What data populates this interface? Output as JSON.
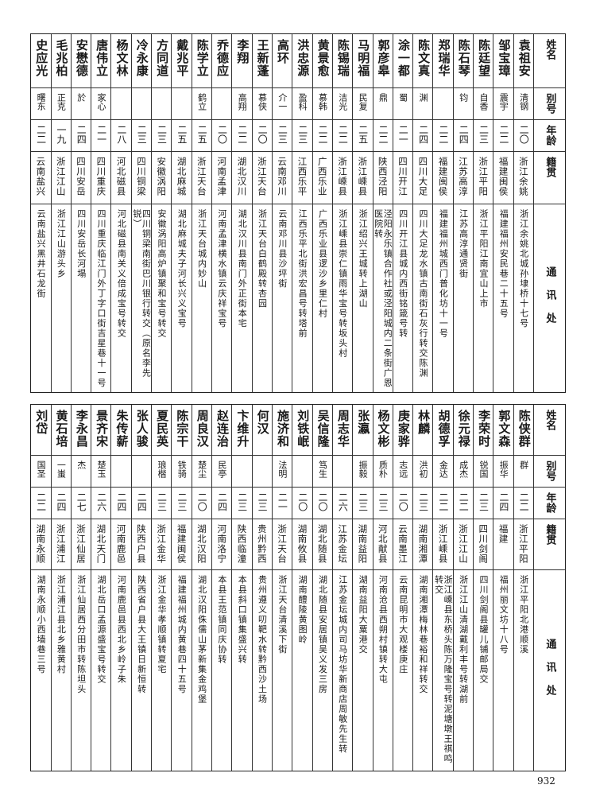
{
  "headers": {
    "name": "姓名",
    "alias": "别号",
    "age": "年龄",
    "origin": "籍贯",
    "address": "通讯处"
  },
  "top_rows": [
    {
      "name": "袁祖安",
      "alias": "清钢",
      "age": "二〇",
      "origin": "浙江余姚",
      "address": "浙江余姚北城孙埭桥十七号"
    },
    {
      "name": "邹宝璋",
      "alias": "震宇",
      "age": "二二",
      "origin": "福建闽侯",
      "address": "福建福州安民巷二十五号"
    },
    {
      "name": "陈廷望",
      "alias": "自香",
      "age": "二三",
      "origin": "浙江平阳",
      "address": "浙江平阳江南宜山上市"
    },
    {
      "name": "陈石琴",
      "alias": "钧",
      "age": "二四",
      "origin": "江苏高淳",
      "address": "江苏高淳通贤街"
    },
    {
      "name": "郑瑞华",
      "alias": "",
      "age": "二二",
      "origin": "福建闽侯",
      "address": "福建福州城西门普化坊十一号"
    },
    {
      "name": "陈文真",
      "alias": "渊",
      "age": "二四",
      "origin": "四川大足",
      "address": "四川大足龙水镇古南街石灰行转交陈渊"
    },
    {
      "name": "涂一都",
      "alias": "蜀",
      "age": "二一",
      "origin": "四川开江",
      "address": "四川开江县城内西街铭箴号转"
    },
    {
      "name": "郭彦皋",
      "alias": "鼎",
      "age": "二二",
      "origin": "陕西泾阳",
      "address": "泾阳永乐镇合作社或泾阳城内二条街广恩医院转"
    },
    {
      "name": "马明福",
      "alias": "民复",
      "age": "二五",
      "origin": "浙江嵊县",
      "address": "浙江绍兴王城转上湖山"
    },
    {
      "name": "陈锡瑞",
      "alias": "洁光",
      "age": "二二",
      "origin": "浙江嵊县",
      "address": "浙江嵊县崇仁镇雨华宝号转坂头村"
    },
    {
      "name": "黄景愈",
      "alias": "慕韩",
      "age": "二二",
      "origin": "广西乐业",
      "address": "广西乐业县逻沙乡里仁村"
    },
    {
      "name": "洪忠源",
      "alias": "盈科",
      "age": "二三",
      "origin": "江西乐平",
      "address": "江西乐平北街洪宏昌号转塔前"
    },
    {
      "name": "高环",
      "alias": "介一",
      "age": "二三",
      "origin": "云南邓川",
      "address": "云南邓川县沙坪街"
    },
    {
      "name": "王新蓬",
      "alias": "慕侠",
      "age": "二〇",
      "origin": "浙江天台",
      "address": "浙江天台白鹤殿转杏园"
    },
    {
      "name": "李翔",
      "alias": "高翔",
      "age": "二二",
      "origin": "湖北汉川",
      "address": "湖北汉川县南门外正街本宅"
    },
    {
      "name": "乔德应",
      "alias": "",
      "age": "二〇",
      "origin": "河南孟津",
      "address": "河南孟津横水镇云庆祥宝号"
    },
    {
      "name": "陈学立",
      "alias": "鹤立",
      "age": "二五",
      "origin": "浙江天台",
      "address": "浙江天台城内妙山"
    },
    {
      "name": "戴兆平",
      "alias": "",
      "age": "二五",
      "origin": "湖北麻城",
      "address": "湖北麻城夫子河长兴义宝号"
    },
    {
      "name": "方同道",
      "alias": "",
      "age": "二三",
      "origin": "安徽涡阳",
      "address": "安徽涡阳高炉镇聚和宝号转交"
    },
    {
      "name": "冷永康",
      "alias": "",
      "age": "二三",
      "origin": "四川铜梁",
      "address": "四川铜梁南街巴川银行转交（原名李先锐）"
    },
    {
      "name": "杨文林",
      "alias": "",
      "age": "二八",
      "origin": "河北磁县",
      "address": "河北磁县南关义倍成宝号转交"
    },
    {
      "name": "唐伟立",
      "alias": "家心",
      "age": "二一",
      "origin": "四川重庆",
      "address": "四川重庆临江门外丁字口街吉星巷十一号"
    },
    {
      "name": "安懋德",
      "alias": "於",
      "age": "二四",
      "origin": "四川安岳",
      "address": "四川安岳长河塌"
    },
    {
      "name": "毛兆柏",
      "alias": "正克",
      "age": "一九",
      "origin": "浙江江山",
      "address": "浙江江山游头乡"
    },
    {
      "name": "史应光",
      "alias": "曙东",
      "age": "二二",
      "origin": "云南盐兴",
      "address": "云南盐兴黑井石龙街"
    }
  ],
  "bottom_rows": [
    {
      "name": "陈侠群",
      "alias": "群",
      "age": "二二",
      "origin": "浙江平阳",
      "address": "浙江平阳北港顺溪"
    },
    {
      "name": "郭文森",
      "alias": "振华",
      "age": "二四",
      "origin": "福建",
      "address": "福州丽文坊十八号"
    },
    {
      "name": "李荣时",
      "alias": "锐国",
      "age": "二三",
      "origin": "四川剑阁",
      "address": "四川剑阁县罐儿铺邮局交"
    },
    {
      "name": "徐元禄",
      "alias": "成杰",
      "age": "二二",
      "origin": "浙江江山",
      "address": "浙江江山清湖戴利丰号转湖前"
    },
    {
      "name": "胡德孚",
      "alias": "金达",
      "age": "二二",
      "origin": "浙江嵊县",
      "address": "浙江嵊县东桥头陈万隆宝号转泥塘墩王祺鸣转交"
    },
    {
      "name": "林麟",
      "alias": "洪初",
      "age": "二三",
      "origin": "湖南湘潭",
      "address": "湖南湘潭梅林巷裕和祥转交"
    },
    {
      "name": "庚家骅",
      "alias": "志远",
      "age": "二〇",
      "origin": "云南墨江",
      "address": "云南昆明市大观楼庚庄"
    },
    {
      "name": "杨文彬",
      "alias": "质朴",
      "age": "二三",
      "origin": "河北献县",
      "address": "河南沧县西朔村镇转大屯"
    },
    {
      "name": "张瀛",
      "alias": "振毅",
      "age": "二三",
      "origin": "湖南益阳",
      "address": "湖南益阳大粟港交"
    },
    {
      "name": "周志华",
      "alias": "",
      "age": "二六",
      "origin": "江苏金坛",
      "address": "江苏金坛城内司马坊华新商店周敏先生转"
    },
    {
      "name": "吴信隆",
      "alias": "笃生",
      "age": "二〇",
      "origin": "湖北随县",
      "address": "湖北随县安居镇吴义发三房"
    },
    {
      "name": "刘铁岷",
      "alias": "",
      "age": "二〇",
      "origin": "湖南攸县",
      "address": "湖南醴陵黄图岭"
    },
    {
      "name": "施济和",
      "alias": "法明",
      "age": "二一",
      "origin": "浙江天台",
      "address": "浙江天台清溪下街"
    },
    {
      "name": "何汉",
      "alias": "",
      "age": "二三",
      "origin": "贵州黔西",
      "address": "贵州遵义叨靶水转黔西沙土场"
    },
    {
      "name": "卞维升",
      "alias": "",
      "age": "二三",
      "origin": "陕西临潼",
      "address": "本县斜口镇集盛兴转"
    },
    {
      "name": "赵连治",
      "alias": "民亭",
      "age": "二四",
      "origin": "河南洛宁",
      "address": "本县王范镇同庆协转"
    },
    {
      "name": "周良汉",
      "alias": "楚尘",
      "age": "二〇",
      "origin": "湖北汉阳",
      "address": "湖北汉阳侏儒山茅新集金鸡堡"
    },
    {
      "name": "陈宗干",
      "alias": "铁骑",
      "age": "二三",
      "origin": "福建闽侯",
      "address": "福建福州城内黄巷四十五号"
    },
    {
      "name": "夏民英",
      "alias": "琅楷",
      "age": "二三",
      "origin": "浙江金华",
      "address": "浙江金华孝顺镇转夏宅"
    },
    {
      "name": "张人骏",
      "alias": "",
      "age": "二四",
      "origin": "陕西户县",
      "address": "陕西省户县大王镇日新恒转"
    },
    {
      "name": "朱传薪",
      "alias": "",
      "age": "二四",
      "origin": "河南鹿邑",
      "address": "河南鹿邑县西北乡岭子朱"
    },
    {
      "name": "景齐宋",
      "alias": "楚玉",
      "age": "二六",
      "origin": "湖北天门",
      "address": "湖北岳口孟源盛宝号转交"
    },
    {
      "name": "李永昌",
      "alias": "杰",
      "age": "二七",
      "origin": "浙江仙居",
      "address": "浙江仙居西分田市转陈坦头"
    },
    {
      "name": "黄石培",
      "alias": "一蚩",
      "age": "二四",
      "origin": "浙江浦江",
      "address": "浙江浦江县北乡雅黄村"
    },
    {
      "name": "刘岱",
      "alias": "国圣",
      "age": "二二",
      "origin": "湖南永顺",
      "address": "湖南永顺小西墙巷三号"
    }
  ],
  "page_number": "932"
}
